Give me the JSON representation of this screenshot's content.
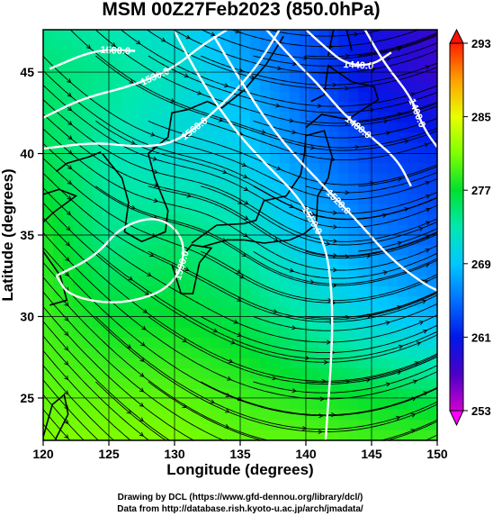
{
  "chart_data": {
    "type": "heatmap",
    "title": "MSM 00Z27Feb2023 (850.0hPa)",
    "xlabel": "Longitude (degrees)",
    "ylabel": "Latitude  (degrees)",
    "xlim": [
      120,
      150
    ],
    "ylim": [
      22.4,
      47.6
    ],
    "x_ticks": [
      "120",
      "125",
      "130",
      "135",
      "140",
      "145",
      "150"
    ],
    "y_ticks": [
      "25",
      "30",
      "35",
      "40",
      "45"
    ],
    "grid": true,
    "colorbar": {
      "range": [
        253,
        293
      ],
      "ticks": [
        "253",
        "261",
        "269",
        "277",
        "285",
        "293"
      ]
    },
    "temperature_field": {
      "lons": [
        120,
        125,
        130,
        135,
        140,
        145,
        150
      ],
      "lats": [
        47.6,
        45,
        40,
        35,
        30,
        25,
        22.4
      ],
      "values": [
        [
          274,
          273,
          271,
          267,
          264,
          260,
          258
        ],
        [
          275,
          274,
          272,
          268,
          264,
          260,
          258
        ],
        [
          276,
          273,
          271,
          270,
          266,
          263,
          262
        ],
        [
          278,
          274,
          275,
          273,
          269,
          266,
          264
        ],
        [
          279,
          277,
          277,
          276,
          273,
          270,
          268
        ],
        [
          280,
          280,
          280,
          279,
          278,
          277,
          276
        ],
        [
          281,
          281,
          281,
          280,
          280,
          279,
          279
        ]
      ]
    },
    "height_contours": [
      {
        "label": "1500.0",
        "points": [
          [
            120.5,
            45.2
          ],
          [
            124,
            46.4
          ],
          [
            127,
            46.3
          ]
        ]
      },
      {
        "label": "1530.0",
        "points": [
          [
            120,
            42.2
          ],
          [
            123,
            43.4
          ],
          [
            127,
            44.2
          ],
          [
            130,
            45.3
          ],
          [
            132,
            46.6
          ],
          [
            134,
            47.6
          ]
        ]
      },
      {
        "label": "1560.0",
        "points": [
          [
            120,
            40.3
          ],
          [
            124,
            40.7
          ],
          [
            127,
            40.4
          ],
          [
            130,
            40.6
          ],
          [
            133,
            42.5
          ],
          [
            136,
            45
          ],
          [
            138,
            47.6
          ]
        ]
      },
      {
        "label": "1590.0",
        "points": [
          [
            121,
            32.5
          ],
          [
            124,
            33.7
          ],
          [
            126,
            35.6
          ],
          [
            129,
            36.2
          ],
          [
            131,
            34.5
          ],
          [
            130,
            31.8
          ],
          [
            126,
            30.7
          ],
          [
            122,
            31.2
          ],
          [
            121,
            32.5
          ]
        ]
      },
      {
        "label": "1440.0",
        "points": [
          [
            140,
            47.6
          ],
          [
            141.5,
            46.5
          ],
          [
            143,
            45.5
          ],
          [
            145,
            45.4
          ],
          [
            146.5,
            46.2
          ]
        ]
      },
      {
        "label": "1480.0",
        "points": [
          [
            137,
            47.6
          ],
          [
            139,
            45.8
          ],
          [
            141,
            44.2
          ],
          [
            143,
            42.3
          ],
          [
            145,
            41
          ],
          [
            147,
            39.6
          ],
          [
            148,
            38
          ]
        ]
      },
      {
        "label": "1520.0",
        "points": [
          [
            133,
            47.2
          ],
          [
            135,
            44.5
          ],
          [
            137,
            42
          ],
          [
            139,
            40
          ],
          [
            141,
            38.3
          ],
          [
            144,
            35.8
          ],
          [
            146.5,
            33.5
          ],
          [
            149,
            32
          ],
          [
            150,
            31.6
          ]
        ]
      },
      {
        "label": "1550.0",
        "points": [
          [
            130,
            47.5
          ],
          [
            132,
            44.5
          ],
          [
            134.5,
            41.5
          ],
          [
            137,
            39.3
          ],
          [
            139.5,
            37.3
          ],
          [
            141.5,
            34.5
          ],
          [
            142,
            31.5
          ],
          [
            142,
            28
          ],
          [
            141.5,
            22.4
          ]
        ]
      },
      {
        "label": "1400.0",
        "points": [
          [
            144.5,
            47.6
          ],
          [
            146,
            45.5
          ],
          [
            148,
            43.5
          ],
          [
            149,
            41.5
          ],
          [
            150,
            40.4
          ]
        ]
      }
    ]
  },
  "credits": {
    "line1": "Drawing by DCL (https://www.gfd-dennou.org/library/dcl/)",
    "line2": "Data from http://database.rish.kyoto-u.ac.jp/arch/jmadata/"
  },
  "colors": {
    "frame": "#000000",
    "contour": "#ffffff",
    "streamline": "#000000"
  }
}
